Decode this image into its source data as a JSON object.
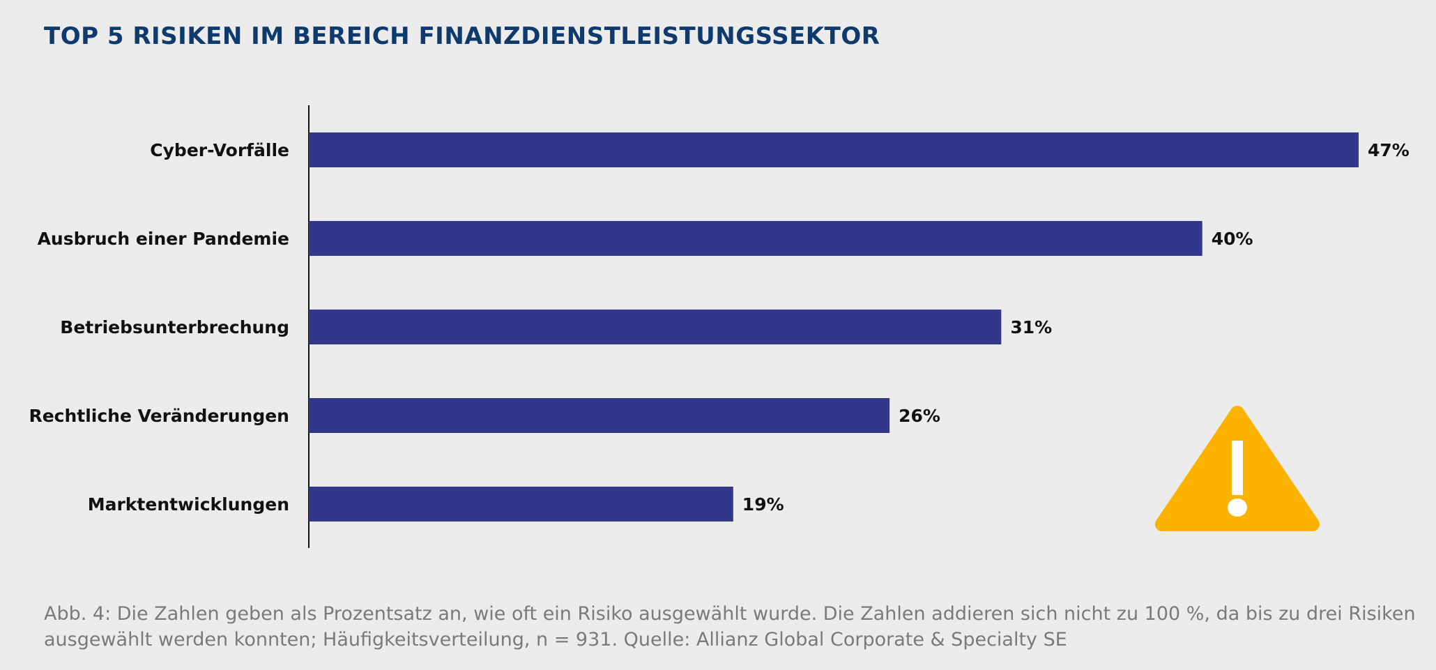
{
  "colors": {
    "bar": "#31388c",
    "warning": "#fbb300",
    "title": "#0f3a6e",
    "background": "#ebeceb"
  },
  "icons": {
    "warning": "warning-triangle-icon"
  },
  "caption": {
    "line1": "Abb. 4: Die Zahlen geben als Prozentsatz an, wie oft ein Risiko ausgewählt wurde. Die Zahlen addieren sich nicht zu 100 %, da bis zu drei Risiken",
    "line2": "ausgewählt werden konnten; Häufigkeitsverteilung, n = 931.  Quelle: Allianz Global Corporate & Specialty SE"
  },
  "chart_data": {
    "type": "bar",
    "orientation": "horizontal",
    "title": "TOP 5 RISIKEN IM BEREICH FINANZDIENSTLEISTUNGSSEKTOR",
    "categories": [
      "Cyber-Vorfälle",
      "Ausbruch einer Pandemie",
      "Betriebsunterbrechung",
      "Rechtliche Veränderungen",
      "Marktentwicklungen"
    ],
    "values": [
      47,
      40,
      31,
      26,
      19
    ],
    "value_labels": [
      "47%",
      "40%",
      "31%",
      "26%",
      "19%"
    ],
    "unit": "%",
    "xlim": [
      0,
      47
    ],
    "grid": false,
    "legend": "none"
  }
}
